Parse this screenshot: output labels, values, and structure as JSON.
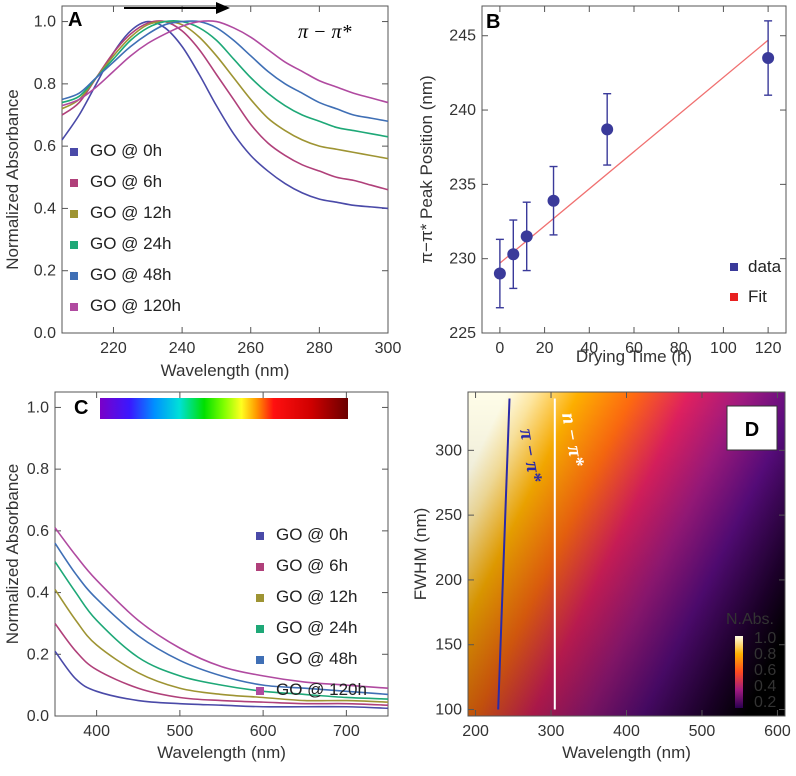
{
  "chart_data": [
    {
      "panel": "A",
      "type": "line",
      "xlabel": "Wavelength (nm)",
      "ylabel": "Normalized Absorbance",
      "xlim": [
        205,
        300
      ],
      "ylim": [
        0,
        1.05
      ],
      "xticks": [
        220,
        240,
        260,
        280,
        300
      ],
      "yticks": [
        0.0,
        0.2,
        0.4,
        0.6,
        0.8,
        1.0
      ],
      "annotation": "π − π*",
      "series": [
        {
          "name": "GO @ 0h",
          "color": "#4a4aa8",
          "x": [
            205,
            210,
            215,
            220,
            225,
            230,
            235,
            240,
            245,
            250,
            255,
            260,
            265,
            270,
            275,
            280,
            285,
            290,
            295,
            300
          ],
          "y": [
            0.62,
            0.7,
            0.8,
            0.9,
            0.97,
            1.0,
            0.98,
            0.92,
            0.83,
            0.73,
            0.64,
            0.57,
            0.52,
            0.48,
            0.45,
            0.43,
            0.42,
            0.41,
            0.405,
            0.4
          ]
        },
        {
          "name": "GO @ 6h",
          "color": "#b0407a",
          "x": [
            205,
            210,
            215,
            220,
            225,
            230,
            235,
            240,
            245,
            250,
            255,
            260,
            265,
            270,
            275,
            280,
            285,
            290,
            295,
            300
          ],
          "y": [
            0.7,
            0.74,
            0.82,
            0.9,
            0.96,
            0.995,
            1.0,
            0.97,
            0.91,
            0.83,
            0.75,
            0.67,
            0.61,
            0.57,
            0.54,
            0.52,
            0.5,
            0.49,
            0.475,
            0.46
          ]
        },
        {
          "name": "GO @ 12h",
          "color": "#9e9433",
          "x": [
            205,
            210,
            215,
            220,
            225,
            230,
            235,
            240,
            245,
            250,
            255,
            260,
            265,
            270,
            275,
            280,
            285,
            290,
            295,
            300
          ],
          "y": [
            0.72,
            0.75,
            0.82,
            0.89,
            0.95,
            0.99,
            1.0,
            0.99,
            0.95,
            0.89,
            0.82,
            0.75,
            0.69,
            0.65,
            0.62,
            0.6,
            0.59,
            0.58,
            0.57,
            0.56
          ]
        },
        {
          "name": "GO @ 24h",
          "color": "#1ea877",
          "x": [
            205,
            210,
            215,
            220,
            225,
            230,
            235,
            240,
            245,
            250,
            255,
            260,
            265,
            270,
            275,
            280,
            285,
            290,
            295,
            300
          ],
          "y": [
            0.74,
            0.76,
            0.82,
            0.88,
            0.94,
            0.98,
            1.0,
            1.0,
            0.98,
            0.94,
            0.88,
            0.82,
            0.77,
            0.73,
            0.7,
            0.68,
            0.66,
            0.65,
            0.64,
            0.63
          ]
        },
        {
          "name": "GO @ 48h",
          "color": "#3f6fb5",
          "x": [
            205,
            210,
            215,
            220,
            225,
            230,
            235,
            240,
            245,
            250,
            255,
            260,
            265,
            270,
            275,
            280,
            285,
            290,
            295,
            300
          ],
          "y": [
            0.75,
            0.77,
            0.82,
            0.87,
            0.92,
            0.96,
            0.99,
            1.0,
            1.0,
            0.98,
            0.94,
            0.89,
            0.84,
            0.8,
            0.77,
            0.74,
            0.72,
            0.7,
            0.69,
            0.68
          ]
        },
        {
          "name": "GO @ 120h",
          "color": "#b04aa0",
          "x": [
            205,
            210,
            215,
            220,
            225,
            230,
            235,
            240,
            245,
            250,
            255,
            260,
            265,
            270,
            275,
            280,
            285,
            290,
            295,
            300
          ],
          "y": [
            0.73,
            0.75,
            0.79,
            0.84,
            0.89,
            0.93,
            0.96,
            0.985,
            1.0,
            1.0,
            0.98,
            0.95,
            0.91,
            0.87,
            0.84,
            0.81,
            0.79,
            0.77,
            0.755,
            0.74
          ]
        }
      ]
    },
    {
      "panel": "B",
      "type": "scatter",
      "xlabel": "Drying Time (h)",
      "ylabel": "π−π* Peak Position (nm)",
      "xlim": [
        -8,
        128
      ],
      "ylim": [
        225,
        247
      ],
      "xticks": [
        0,
        20,
        40,
        60,
        80,
        100,
        120
      ],
      "yticks": [
        225,
        230,
        235,
        240,
        245
      ],
      "series": [
        {
          "name": "data",
          "color": "#3a3a9a",
          "x": [
            0,
            6,
            12,
            24,
            48,
            120
          ],
          "y": [
            229.0,
            230.3,
            231.5,
            233.9,
            238.7,
            243.5
          ],
          "err": [
            2.3,
            2.3,
            2.3,
            2.3,
            2.4,
            2.5
          ]
        },
        {
          "name": "Fit",
          "color": "#f07070",
          "x": [
            0,
            120
          ],
          "y": [
            229.7,
            244.7
          ]
        }
      ],
      "legend": [
        "data",
        "Fit"
      ]
    },
    {
      "panel": "C",
      "type": "line",
      "xlabel": "Wavelength (nm)",
      "ylabel": "Normalized Absorbance",
      "xlim": [
        350,
        750
      ],
      "ylim": [
        0,
        1.05
      ],
      "xticks": [
        400,
        500,
        600,
        700
      ],
      "yticks": [
        0.0,
        0.2,
        0.4,
        0.6,
        0.8,
        1.0
      ],
      "series": [
        {
          "name": "GO @ 0h",
          "color": "#4a4aa8",
          "x": [
            350,
            375,
            400,
            450,
            500,
            550,
            600,
            650,
            700,
            750
          ],
          "y": [
            0.21,
            0.12,
            0.08,
            0.05,
            0.04,
            0.035,
            0.03,
            0.03,
            0.03,
            0.025
          ]
        },
        {
          "name": "GO @ 6h",
          "color": "#b0407a",
          "x": [
            350,
            375,
            400,
            450,
            500,
            550,
            600,
            650,
            700,
            750
          ],
          "y": [
            0.3,
            0.21,
            0.15,
            0.09,
            0.06,
            0.05,
            0.045,
            0.04,
            0.04,
            0.035
          ]
        },
        {
          "name": "GO @ 12h",
          "color": "#9e9433",
          "x": [
            350,
            375,
            400,
            450,
            500,
            550,
            600,
            650,
            700,
            750
          ],
          "y": [
            0.41,
            0.31,
            0.23,
            0.14,
            0.09,
            0.07,
            0.06,
            0.05,
            0.05,
            0.045
          ]
        },
        {
          "name": "GO @ 24h",
          "color": "#1ea877",
          "x": [
            350,
            375,
            400,
            450,
            500,
            550,
            600,
            650,
            700,
            750
          ],
          "y": [
            0.5,
            0.4,
            0.31,
            0.19,
            0.13,
            0.1,
            0.08,
            0.07,
            0.06,
            0.055
          ]
        },
        {
          "name": "GO @ 48h",
          "color": "#3f6fb5",
          "x": [
            350,
            375,
            400,
            450,
            500,
            550,
            600,
            650,
            700,
            750
          ],
          "y": [
            0.56,
            0.46,
            0.38,
            0.26,
            0.18,
            0.13,
            0.1,
            0.09,
            0.08,
            0.07
          ]
        },
        {
          "name": "GO @ 120h",
          "color": "#b04aa0",
          "x": [
            350,
            375,
            400,
            450,
            500,
            550,
            600,
            650,
            700,
            750
          ],
          "y": [
            0.61,
            0.52,
            0.44,
            0.31,
            0.22,
            0.16,
            0.13,
            0.11,
            0.1,
            0.09
          ]
        }
      ],
      "colorbar_range": [
        350,
        700
      ]
    },
    {
      "panel": "D",
      "type": "heatmap",
      "xlabel": "Wavelength (nm)",
      "ylabel": "FWHM (nm)",
      "xlim": [
        190,
        610
      ],
      "ylim": [
        95,
        345
      ],
      "xticks": [
        200,
        300,
        400,
        500,
        600
      ],
      "yticks": [
        100,
        150,
        200,
        250,
        300
      ],
      "colorbar_title": "N.Abs.",
      "colorbar_ticks": [
        "1.0",
        "0.8",
        "0.6",
        "0.4",
        "0.2"
      ],
      "lines": [
        {
          "label": "π − π*",
          "color": "#2a2aa8",
          "x": [
            230,
            245
          ],
          "y": [
            100,
            340
          ]
        },
        {
          "label": "n − π*",
          "color": "#ffffff",
          "x": [
            305,
            305
          ],
          "y": [
            100,
            340
          ]
        }
      ]
    }
  ],
  "panel_labels": {
    "a": "A",
    "b": "B",
    "c": "C",
    "d": "D"
  },
  "annotations": {
    "a_transition": "π − π*",
    "d_pi": "π − π*",
    "d_n": "n − π*"
  },
  "cbar_title": "N.Abs."
}
